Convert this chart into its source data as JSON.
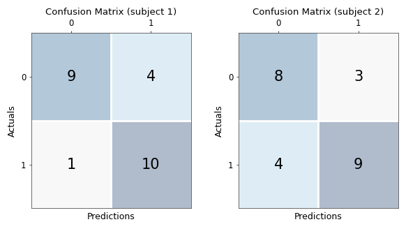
{
  "subject1": {
    "title": "Confusion Matrix (subject 1)",
    "matrix": [
      [
        9,
        4
      ],
      [
        1,
        10
      ]
    ],
    "xlabel": "Predictions",
    "ylabel": "Actuals",
    "tick_labels": [
      "0",
      "1"
    ]
  },
  "subject2": {
    "title": "Confusion Matrix (subject 2)",
    "matrix": [
      [
        8,
        3
      ],
      [
        4,
        9
      ]
    ],
    "xlabel": "Predictions",
    "ylabel": "Actuals",
    "tick_labels": [
      "0",
      "1"
    ]
  },
  "cell_colors_s1": [
    [
      "#b3c8d8",
      "#deedf5"
    ],
    [
      "#f8f8f8",
      "#b0bccc"
    ]
  ],
  "cell_colors_s2": [
    [
      "#b3c8d8",
      "#f8f8f8"
    ],
    [
      "#deedf5",
      "#b0bccc"
    ]
  ],
  "text_color": "#000000",
  "font_size_numbers": 15,
  "font_size_title": 9.5,
  "font_size_labels": 9,
  "font_size_ticks": 8.5,
  "background_color": "#ffffff"
}
